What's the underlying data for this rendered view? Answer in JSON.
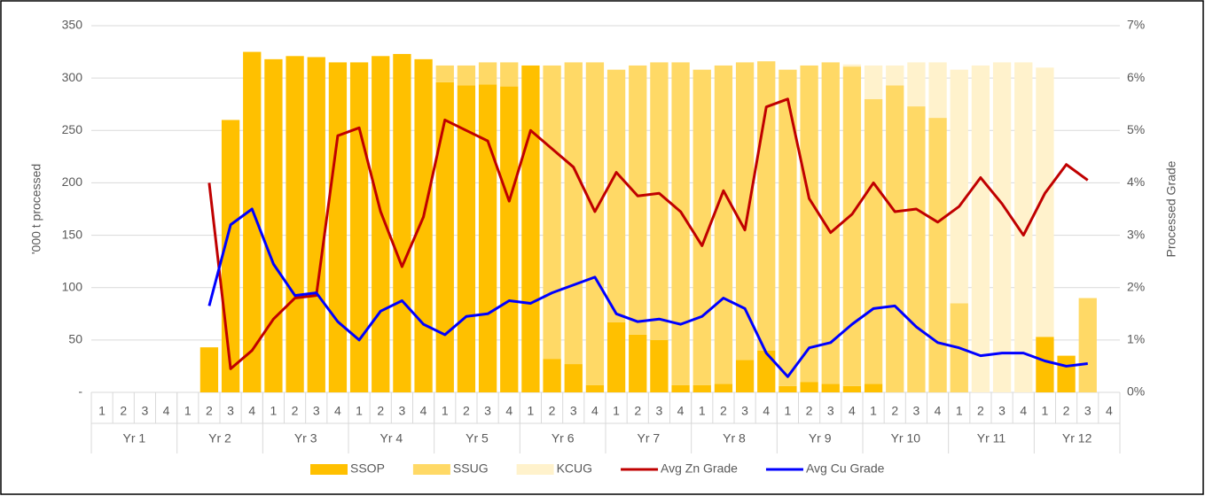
{
  "chart_data": {
    "type": "combo",
    "categories": [
      "1",
      "2",
      "3",
      "4",
      "1",
      "2",
      "3",
      "4",
      "1",
      "2",
      "3",
      "4",
      "1",
      "2",
      "3",
      "4",
      "1",
      "2",
      "3",
      "4",
      "1",
      "2",
      "3",
      "4",
      "1",
      "2",
      "3",
      "4",
      "1",
      "2",
      "3",
      "4",
      "1",
      "2",
      "3",
      "4",
      "1",
      "2",
      "3",
      "4",
      "1",
      "2",
      "3",
      "4",
      "1",
      "2",
      "3",
      "4"
    ],
    "groups": [
      "Yr 1",
      "Yr 2",
      "Yr 3",
      "Yr 4",
      "Yr 5",
      "Yr 6",
      "Yr 7",
      "Yr 8",
      "Yr 9",
      "Yr 10",
      "Yr 11",
      "Yr 12"
    ],
    "ylabel": "'000 t processed",
    "y2label": "Processed Grade",
    "ylim": [
      0,
      350
    ],
    "yticks": [
      {
        "value": 0,
        "label": "-"
      },
      50,
      100,
      150,
      200,
      250,
      300,
      350
    ],
    "y2lim": [
      0,
      7
    ],
    "y2ticks": [
      {
        "value": 0,
        "label": "0%"
      },
      {
        "value": 1,
        "label": "1%"
      },
      {
        "value": 2,
        "label": "2%"
      },
      {
        "value": 3,
        "label": "3%"
      },
      {
        "value": 4,
        "label": "4%"
      },
      {
        "value": 5,
        "label": "5%"
      },
      {
        "value": 6,
        "label": "6%"
      },
      {
        "value": 7,
        "label": "7%"
      }
    ],
    "grid": true,
    "legend": "bottom",
    "series": [
      {
        "name": "SSOP",
        "type": "bar",
        "color": "#ffc000",
        "values": [
          0,
          0,
          0,
          0,
          0,
          43,
          260,
          325,
          318,
          321,
          320,
          315,
          315,
          321,
          323,
          318,
          296,
          293,
          294,
          292,
          312,
          32,
          27,
          7,
          67,
          55,
          50,
          7,
          7,
          8,
          31,
          40,
          6,
          10,
          8,
          6,
          8,
          0,
          0,
          0,
          0,
          0,
          0,
          0,
          53,
          35,
          0,
          0
        ]
      },
      {
        "name": "SSUG",
        "type": "bar",
        "color": "#ffd966",
        "values": [
          0,
          0,
          0,
          0,
          0,
          0,
          0,
          0,
          0,
          0,
          0,
          0,
          0,
          0,
          0,
          0,
          16,
          19,
          21,
          23,
          0,
          280,
          288,
          308,
          241,
          257,
          265,
          308,
          301,
          304,
          284,
          276,
          302,
          302,
          307,
          305,
          272,
          293,
          273,
          262,
          85,
          0,
          0,
          0,
          0,
          0,
          90,
          0
        ]
      },
      {
        "name": "KCUG",
        "type": "bar",
        "color": "#fff2cc",
        "values": [
          0,
          0,
          0,
          0,
          0,
          0,
          0,
          0,
          0,
          0,
          0,
          0,
          0,
          0,
          0,
          0,
          0,
          0,
          0,
          0,
          0,
          0,
          0,
          0,
          0,
          0,
          0,
          0,
          0,
          0,
          0,
          0,
          0,
          0,
          0,
          2,
          32,
          19,
          42,
          53,
          223,
          312,
          315,
          315,
          257,
          0,
          0,
          0
        ]
      },
      {
        "name": "Avg Zn Grade",
        "type": "line",
        "axis": "y2",
        "color": "#c00000",
        "values": [
          null,
          null,
          null,
          null,
          null,
          4.0,
          0.45,
          0.8,
          1.4,
          1.8,
          1.85,
          4.9,
          5.05,
          3.45,
          2.4,
          3.35,
          5.2,
          5.0,
          4.8,
          3.65,
          5.0,
          4.65,
          4.3,
          3.45,
          4.2,
          3.75,
          3.8,
          3.45,
          2.8,
          3.85,
          3.1,
          5.45,
          5.6,
          3.7,
          3.05,
          3.4,
          4.0,
          3.45,
          3.5,
          3.25,
          3.55,
          4.1,
          3.6,
          3.0,
          3.8,
          4.35,
          4.05,
          null
        ]
      },
      {
        "name": "Avg Cu Grade",
        "type": "line",
        "axis": "y2",
        "color": "#0000ff",
        "values": [
          null,
          null,
          null,
          null,
          null,
          1.65,
          3.2,
          3.5,
          2.45,
          1.85,
          1.9,
          1.35,
          1.0,
          1.55,
          1.75,
          1.3,
          1.1,
          1.45,
          1.5,
          1.75,
          1.7,
          1.9,
          2.05,
          2.2,
          1.5,
          1.35,
          1.4,
          1.3,
          1.45,
          1.8,
          1.6,
          0.75,
          0.3,
          0.85,
          0.95,
          1.3,
          1.6,
          1.65,
          1.25,
          0.95,
          0.85,
          0.7,
          0.75,
          0.75,
          0.6,
          0.5,
          0.55,
          null
        ]
      }
    ]
  }
}
